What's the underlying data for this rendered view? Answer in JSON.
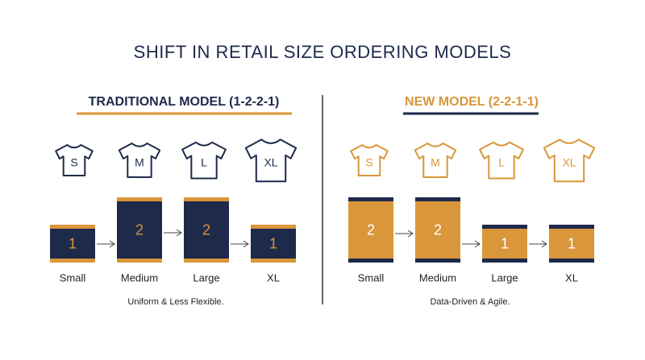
{
  "title": "SHIFT IN RETAIL SIZE ORDERING MODELS",
  "panels": [
    {
      "heading": "TRADITIONAL MODEL (1-2-2-1)",
      "sizes": [
        {
          "shirt": "S",
          "label": "Small",
          "quantity": 1
        },
        {
          "shirt": "M",
          "label": "Medium",
          "quantity": 2
        },
        {
          "shirt": "L",
          "label": "Large",
          "quantity": 2
        },
        {
          "shirt": "XL",
          "label": "XL",
          "quantity": 1
        }
      ],
      "caption": "Uniform & Less Flexible."
    },
    {
      "heading": "NEW MODEL (2-2-1-1)",
      "sizes": [
        {
          "shirt": "S",
          "label": "Small",
          "quantity": 2
        },
        {
          "shirt": "M",
          "label": "Medium",
          "quantity": 2
        },
        {
          "shirt": "L",
          "label": "Large",
          "quantity": 1
        },
        {
          "shirt": "XL",
          "label": "XL",
          "quantity": 1
        }
      ],
      "caption": "Data-Driven & Agile."
    }
  ]
}
